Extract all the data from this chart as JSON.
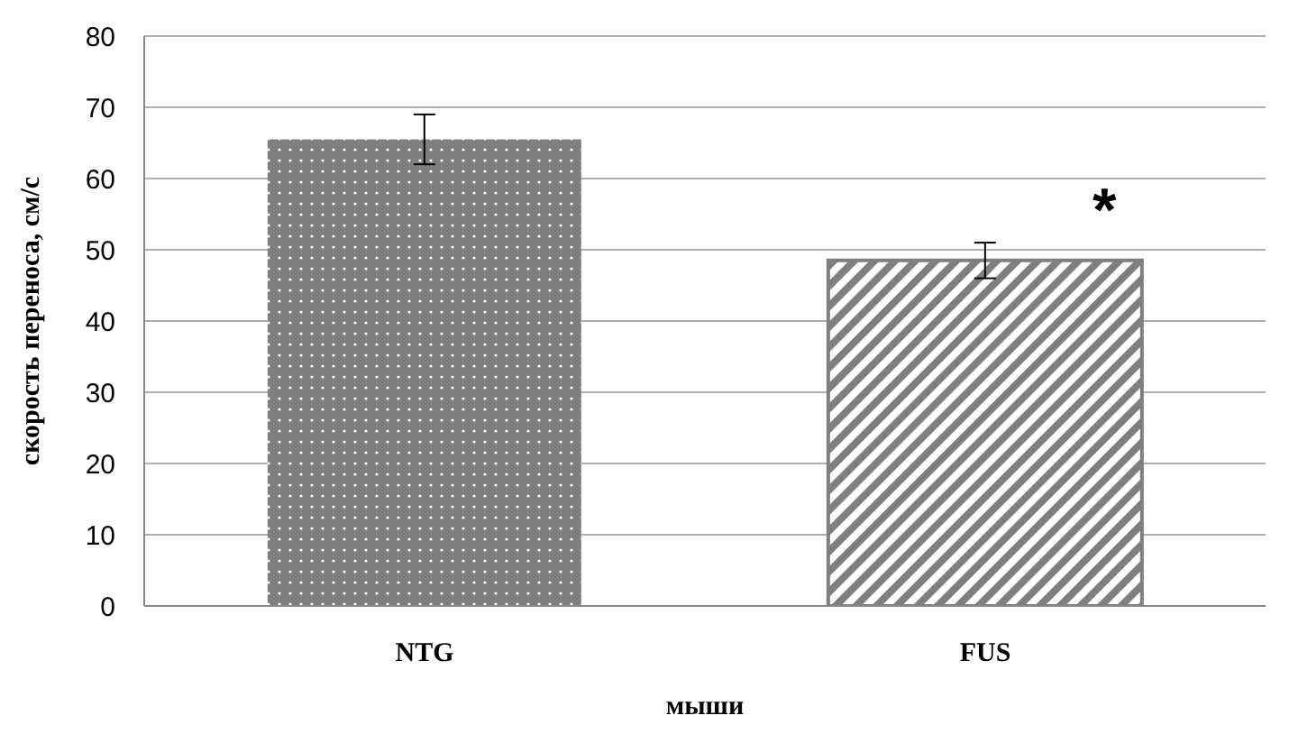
{
  "chart_data": {
    "type": "bar",
    "ylabel": "скорость переноса, см/с",
    "xlabel": "мыши",
    "categories": [
      "NTG",
      "FUS"
    ],
    "values": [
      65.5,
      48.5
    ],
    "errors": [
      3.5,
      2.5
    ],
    "colors": [
      "#7f7f7f",
      "#7f7f7f"
    ],
    "ylim": [
      0,
      80
    ],
    "yticks": [
      0,
      10,
      20,
      30,
      40,
      50,
      60,
      70,
      80
    ],
    "grid": "y",
    "annotations": [
      "*"
    ]
  }
}
